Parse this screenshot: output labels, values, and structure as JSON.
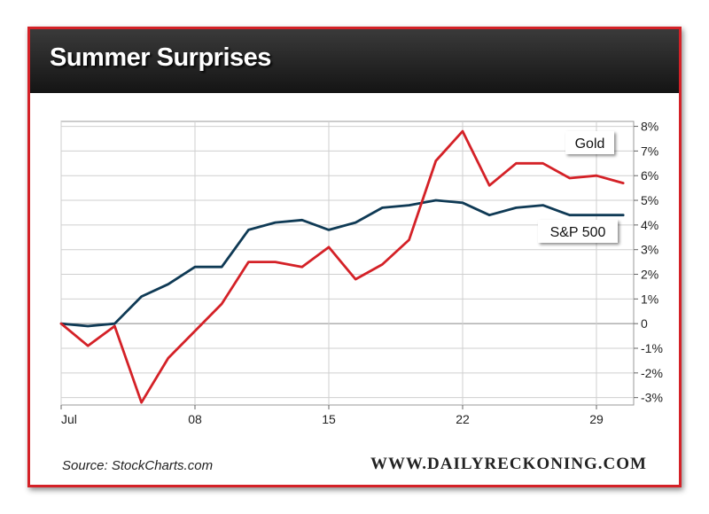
{
  "header": {
    "title": "Summer Surprises"
  },
  "footer": {
    "source": "Source: StockCharts.com",
    "brand": "WWW.DAILYRECKONING.COM"
  },
  "colors": {
    "gold": "#d42127",
    "sp500": "#0f3a55",
    "frame": "#d42127",
    "header_bg": "#1a1a1a"
  },
  "chart_data": {
    "type": "line",
    "title": "Summer Surprises",
    "xlabel": "",
    "ylabel": "",
    "y_axis_side": "right",
    "ylim": [
      -3.3,
      8.2
    ],
    "yticks": [
      {
        "v": 8,
        "label": "8%"
      },
      {
        "v": 7,
        "label": "7%"
      },
      {
        "v": 6,
        "label": "6%"
      },
      {
        "v": 5,
        "label": "5%"
      },
      {
        "v": 4,
        "label": "4%"
      },
      {
        "v": 3,
        "label": "3%"
      },
      {
        "v": 2,
        "label": "2%"
      },
      {
        "v": 1,
        "label": "1%"
      },
      {
        "v": 0,
        "label": "0"
      },
      {
        "v": -1,
        "label": "-1%"
      },
      {
        "v": -2,
        "label": "-2%"
      },
      {
        "v": -3,
        "label": "-3%"
      }
    ],
    "xticks": [
      {
        "i": 0,
        "label": "Jul"
      },
      {
        "i": 5,
        "label": "08"
      },
      {
        "i": 10,
        "label": "15"
      },
      {
        "i": 15,
        "label": "22"
      },
      {
        "i": 20,
        "label": "29"
      }
    ],
    "grid": true,
    "legend": "inline labels at right end of lines",
    "series": [
      {
        "name": "Gold",
        "color": "#d42127",
        "values": [
          0.0,
          -0.9,
          -0.1,
          -3.2,
          -1.4,
          -0.3,
          0.8,
          2.5,
          2.5,
          2.3,
          3.1,
          1.8,
          2.4,
          3.4,
          6.6,
          7.8,
          5.6,
          6.5,
          6.5,
          5.9,
          6.0,
          5.7
        ]
      },
      {
        "name": "S&P 500",
        "color": "#0f3a55",
        "values": [
          0.0,
          -0.1,
          0.0,
          1.1,
          1.6,
          2.3,
          2.3,
          3.8,
          4.1,
          4.2,
          3.8,
          4.1,
          4.7,
          4.8,
          5.0,
          4.9,
          4.4,
          4.7,
          4.8,
          4.4,
          4.4,
          4.4
        ]
      }
    ]
  }
}
